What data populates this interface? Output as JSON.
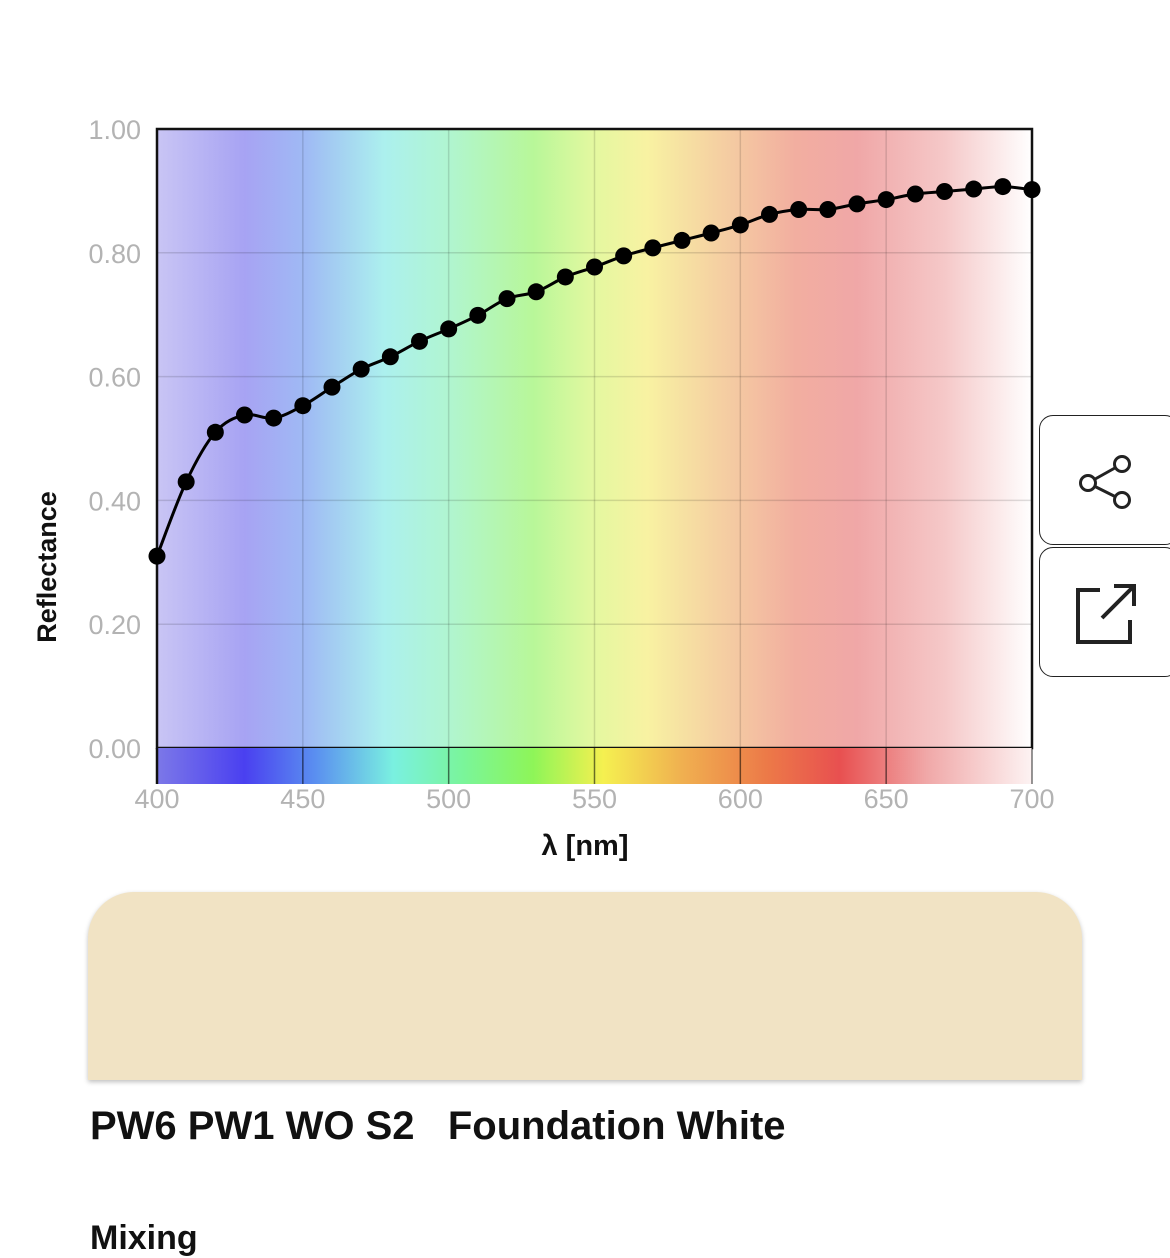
{
  "chart_data": {
    "type": "line",
    "xlabel": "λ [nm]",
    "ylabel": "Reflectance",
    "xlim": [
      400,
      700
    ],
    "ylim": [
      0,
      1
    ],
    "x_ticks": [
      "400",
      "450",
      "500",
      "550",
      "600",
      "650",
      "700"
    ],
    "y_ticks": [
      "0.00",
      "0.20",
      "0.40",
      "0.60",
      "0.80",
      "1.00"
    ],
    "grid": true,
    "background": "visible-spectrum gradient",
    "series": [
      {
        "x": [
          400,
          410,
          420,
          430,
          440,
          450,
          460,
          470,
          480,
          490,
          500,
          510,
          520,
          530,
          540,
          550,
          560,
          570,
          580,
          590,
          600,
          610,
          620,
          630,
          640,
          650,
          660,
          670,
          680,
          690,
          700
        ],
        "y": [
          0.31,
          0.43,
          0.51,
          0.538,
          0.533,
          0.553,
          0.583,
          0.612,
          0.632,
          0.657,
          0.677,
          0.699,
          0.726,
          0.737,
          0.761,
          0.777,
          0.795,
          0.808,
          0.82,
          0.832,
          0.845,
          0.862,
          0.87,
          0.87,
          0.879,
          0.886,
          0.895,
          0.899,
          0.903,
          0.907,
          0.902
        ]
      }
    ]
  },
  "swatch": {
    "color": "#f1e3c4"
  },
  "pigment": {
    "title": "PW6 PW1 WO S2   Foundation White"
  },
  "next_section": {
    "label": "Mixing"
  },
  "actions": {
    "share_icon": "share-icon",
    "open_icon": "external-link-icon"
  }
}
